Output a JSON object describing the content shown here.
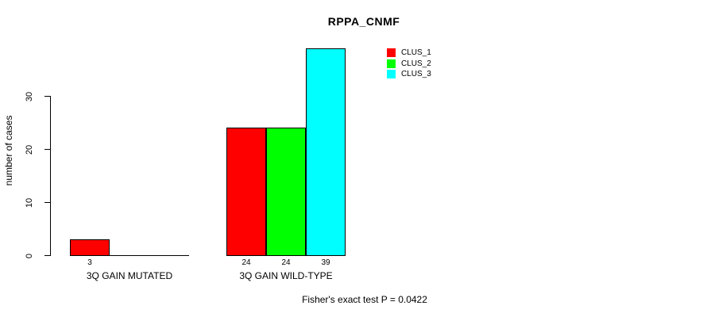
{
  "chart_data": {
    "type": "bar",
    "title": "RPPA_CNMF",
    "xlabel": "",
    "ylabel": "number of cases",
    "categories": [
      "3Q GAIN MUTATED",
      "3Q GAIN WILD-TYPE"
    ],
    "series": [
      {
        "name": "CLUS_1",
        "color": "#ff0000",
        "values": [
          3,
          24
        ]
      },
      {
        "name": "CLUS_2",
        "color": "#00ff00",
        "values": [
          0,
          24
        ]
      },
      {
        "name": "CLUS_3",
        "color": "#00ffff",
        "values": [
          0,
          39
        ]
      }
    ],
    "value_labels": [
      [
        "3",
        "",
        ""
      ],
      [
        "24",
        "24",
        "39"
      ]
    ],
    "yticks": [
      0,
      10,
      20,
      30
    ],
    "ylim": [
      0,
      39
    ],
    "grid": false,
    "legend_position": "top-right",
    "legend_entries": [
      "CLUS_1",
      "CLUS_2",
      "CLUS_3"
    ],
    "annotation": "Fisher's exact test P = 0.0422"
  }
}
